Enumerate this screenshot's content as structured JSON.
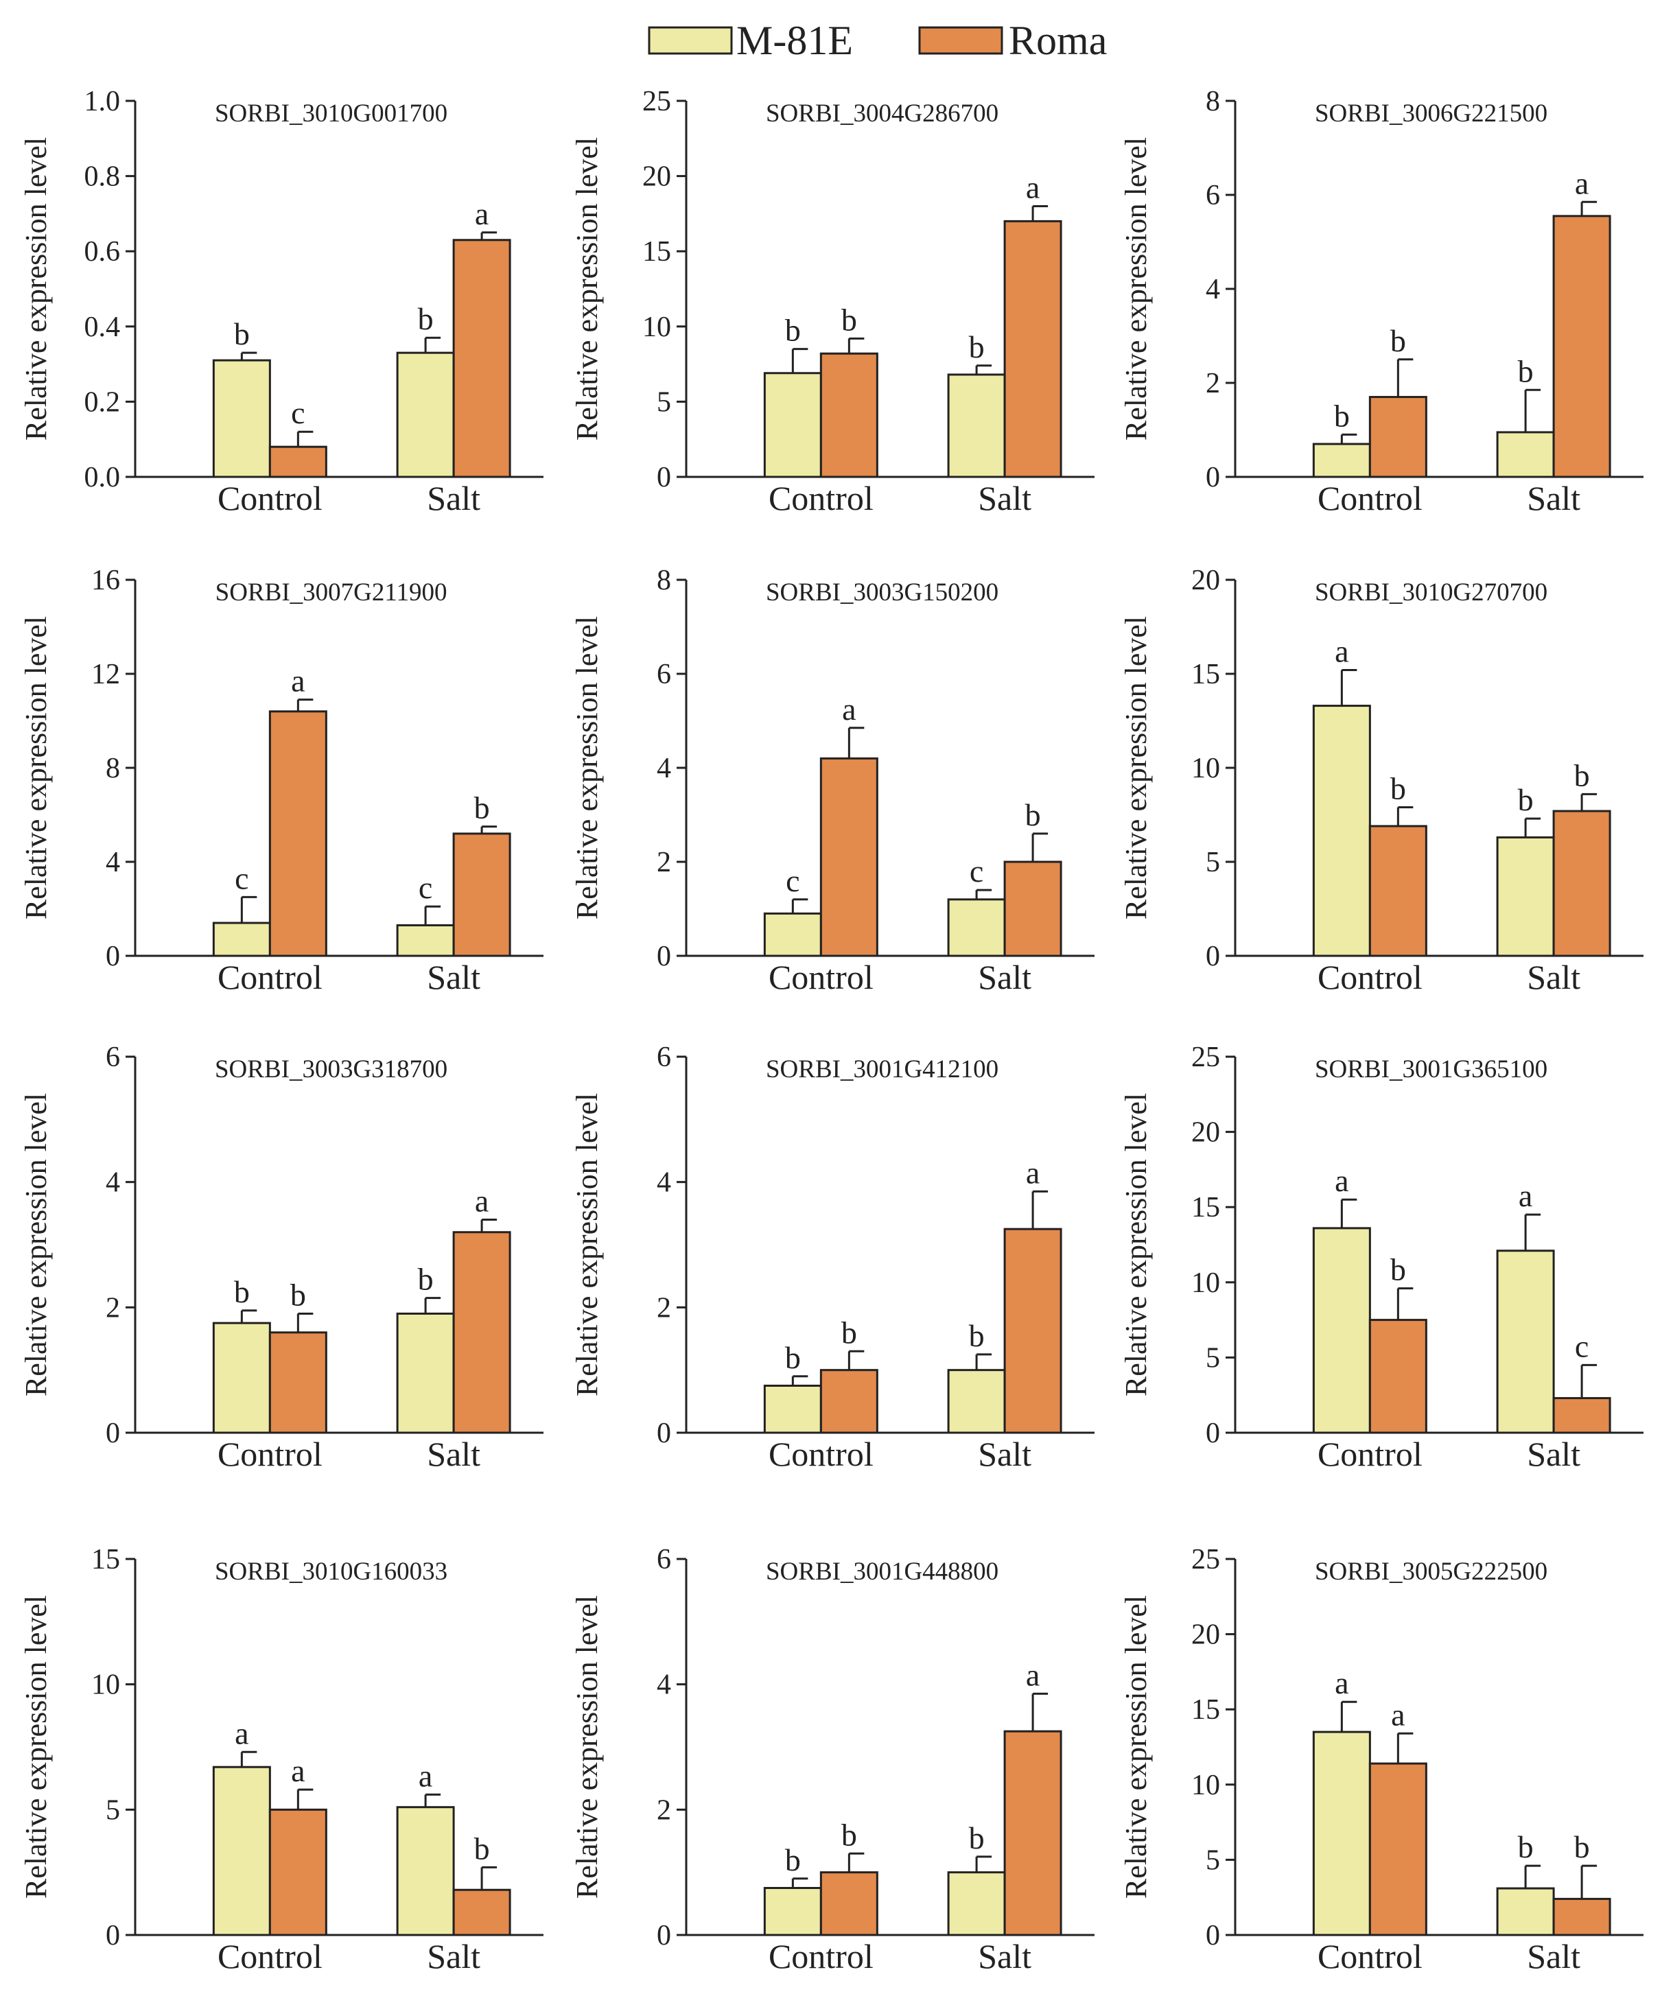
{
  "legend": {
    "items": [
      {
        "label": "M-81E",
        "color": "#eeeba6"
      },
      {
        "label": "Roma",
        "color": "#e38a4d"
      }
    ]
  },
  "chart_data": [
    {
      "type": "bar",
      "title": "SORBI_3010G001700",
      "ylabel": "Relative expression level",
      "categories": [
        "Control",
        "Salt"
      ],
      "ylim": [
        0,
        1.0
      ],
      "yticks": [
        "0.0",
        "0.2",
        "0.4",
        "0.6",
        "0.8",
        "1.0"
      ],
      "series": [
        {
          "name": "M-81E",
          "values": [
            0.31,
            0.33
          ],
          "errors": [
            0.02,
            0.04
          ],
          "letters": [
            "b",
            "b"
          ]
        },
        {
          "name": "Roma",
          "values": [
            0.08,
            0.63
          ],
          "errors": [
            0.04,
            0.02
          ],
          "letters": [
            "c",
            "a"
          ]
        }
      ]
    },
    {
      "type": "bar",
      "title": "SORBI_3004G286700",
      "ylabel": "Relative expression level",
      "categories": [
        "Control",
        "Salt"
      ],
      "ylim": [
        0,
        25
      ],
      "yticks": [
        "0",
        "5",
        "10",
        "15",
        "20",
        "25"
      ],
      "series": [
        {
          "name": "M-81E",
          "values": [
            6.9,
            6.8
          ],
          "errors": [
            1.6,
            0.6
          ],
          "letters": [
            "b",
            "b"
          ]
        },
        {
          "name": "Roma",
          "values": [
            8.2,
            17.0
          ],
          "errors": [
            1.0,
            1.0
          ],
          "letters": [
            "b",
            "a"
          ]
        }
      ]
    },
    {
      "type": "bar",
      "title": "SORBI_3006G221500",
      "ylabel": "Relative expression level",
      "categories": [
        "Control",
        "Salt"
      ],
      "ylim": [
        0,
        8
      ],
      "yticks": [
        "0",
        "2",
        "4",
        "6",
        "8"
      ],
      "series": [
        {
          "name": "M-81E",
          "values": [
            0.7,
            0.95
          ],
          "errors": [
            0.2,
            0.9
          ],
          "letters": [
            "b",
            "b"
          ]
        },
        {
          "name": "Roma",
          "values": [
            1.7,
            5.55
          ],
          "errors": [
            0.8,
            0.3
          ],
          "letters": [
            "b",
            "a"
          ]
        }
      ]
    },
    {
      "type": "bar",
      "title": "SORBI_3007G211900",
      "ylabel": "Relative expression level",
      "categories": [
        "Control",
        "Salt"
      ],
      "ylim": [
        0,
        16
      ],
      "yticks": [
        "0",
        "4",
        "8",
        "12",
        "16"
      ],
      "series": [
        {
          "name": "M-81E",
          "values": [
            1.4,
            1.3
          ],
          "errors": [
            1.1,
            0.8
          ],
          "letters": [
            "c",
            "c"
          ]
        },
        {
          "name": "Roma",
          "values": [
            10.4,
            5.2
          ],
          "errors": [
            0.5,
            0.3
          ],
          "letters": [
            "a",
            "b"
          ]
        }
      ]
    },
    {
      "type": "bar",
      "title": "SORBI_3003G150200",
      "ylabel": "Relative expression level",
      "categories": [
        "Control",
        "Salt"
      ],
      "ylim": [
        0,
        8
      ],
      "yticks": [
        "0",
        "2",
        "4",
        "6",
        "8"
      ],
      "series": [
        {
          "name": "M-81E",
          "values": [
            0.9,
            1.2
          ],
          "errors": [
            0.3,
            0.2
          ],
          "letters": [
            "c",
            "c"
          ]
        },
        {
          "name": "Roma",
          "values": [
            4.2,
            2.0
          ],
          "errors": [
            0.65,
            0.6
          ],
          "letters": [
            "a",
            "b"
          ]
        }
      ]
    },
    {
      "type": "bar",
      "title": "SORBI_3010G270700",
      "ylabel": "Relative expression level",
      "categories": [
        "Control",
        "Salt"
      ],
      "ylim": [
        0,
        20
      ],
      "yticks": [
        "0",
        "5",
        "10",
        "15",
        "20"
      ],
      "series": [
        {
          "name": "M-81E",
          "values": [
            13.3,
            6.3
          ],
          "errors": [
            1.9,
            1.0
          ],
          "letters": [
            "a",
            "b"
          ]
        },
        {
          "name": "Roma",
          "values": [
            6.9,
            7.7
          ],
          "errors": [
            1.0,
            0.9
          ],
          "letters": [
            "b",
            "b"
          ]
        }
      ]
    },
    {
      "type": "bar",
      "title": "SORBI_3003G318700",
      "ylabel": "Relative expression level",
      "categories": [
        "Control",
        "Salt"
      ],
      "ylim": [
        0,
        6
      ],
      "yticks": [
        "0",
        "2",
        "4",
        "6"
      ],
      "series": [
        {
          "name": "M-81E",
          "values": [
            1.75,
            1.9
          ],
          "errors": [
            0.2,
            0.25
          ],
          "letters": [
            "b",
            "b"
          ]
        },
        {
          "name": "Roma",
          "values": [
            1.6,
            3.2
          ],
          "errors": [
            0.3,
            0.2
          ],
          "letters": [
            "b",
            "a"
          ]
        }
      ]
    },
    {
      "type": "bar",
      "title": "SORBI_3001G412100",
      "ylabel": "Relative expression level",
      "categories": [
        "Control",
        "Salt"
      ],
      "ylim": [
        0,
        6
      ],
      "yticks": [
        "0",
        "2",
        "4",
        "6"
      ],
      "series": [
        {
          "name": "M-81E",
          "values": [
            0.75,
            1.0
          ],
          "errors": [
            0.15,
            0.25
          ],
          "letters": [
            "b",
            "b"
          ]
        },
        {
          "name": "Roma",
          "values": [
            1.0,
            3.25
          ],
          "errors": [
            0.3,
            0.6
          ],
          "letters": [
            "b",
            "a"
          ]
        }
      ]
    },
    {
      "type": "bar",
      "title": "SORBI_3001G365100",
      "ylabel": "Relative expression level",
      "categories": [
        "Control",
        "Salt"
      ],
      "ylim": [
        0,
        25
      ],
      "yticks": [
        "0",
        "5",
        "10",
        "15",
        "20",
        "25"
      ],
      "series": [
        {
          "name": "M-81E",
          "values": [
            13.6,
            12.1
          ],
          "errors": [
            1.9,
            2.4
          ],
          "letters": [
            "a",
            "a"
          ]
        },
        {
          "name": "Roma",
          "values": [
            7.5,
            2.3
          ],
          "errors": [
            2.1,
            2.2
          ],
          "letters": [
            "b",
            "c"
          ]
        }
      ]
    },
    {
      "type": "bar",
      "title": "SORBI_3010G160033",
      "ylabel": "Relative expression level",
      "categories": [
        "Control",
        "Salt"
      ],
      "ylim": [
        0,
        15
      ],
      "yticks": [
        "0",
        "5",
        "10",
        "15"
      ],
      "series": [
        {
          "name": "M-81E",
          "values": [
            6.7,
            5.1
          ],
          "errors": [
            0.6,
            0.5
          ],
          "letters": [
            "a",
            "a"
          ]
        },
        {
          "name": "Roma",
          "values": [
            5.0,
            1.8
          ],
          "errors": [
            0.8,
            0.9
          ],
          "letters": [
            "a",
            "b"
          ]
        }
      ]
    },
    {
      "type": "bar",
      "title": "SORBI_3001G448800",
      "ylabel": "Relative expression level",
      "categories": [
        "Control",
        "Salt"
      ],
      "ylim": [
        0,
        6
      ],
      "yticks": [
        "0",
        "2",
        "4",
        "6"
      ],
      "series": [
        {
          "name": "M-81E",
          "values": [
            0.75,
            1.0
          ],
          "errors": [
            0.15,
            0.25
          ],
          "letters": [
            "b",
            "b"
          ]
        },
        {
          "name": "Roma",
          "values": [
            1.0,
            3.25
          ],
          "errors": [
            0.3,
            0.6
          ],
          "letters": [
            "b",
            "a"
          ]
        }
      ]
    },
    {
      "type": "bar",
      "title": "SORBI_3005G222500",
      "ylabel": "Relative expression level",
      "categories": [
        "Control",
        "Salt"
      ],
      "ylim": [
        0,
        25
      ],
      "yticks": [
        "0",
        "5",
        "10",
        "15",
        "20",
        "25"
      ],
      "series": [
        {
          "name": "M-81E",
          "values": [
            13.5,
            3.1
          ],
          "errors": [
            2.0,
            1.5
          ],
          "letters": [
            "a",
            "b"
          ]
        },
        {
          "name": "Roma",
          "values": [
            11.4,
            2.4
          ],
          "errors": [
            2.0,
            2.2
          ],
          "letters": [
            "a",
            "b"
          ]
        }
      ]
    }
  ]
}
